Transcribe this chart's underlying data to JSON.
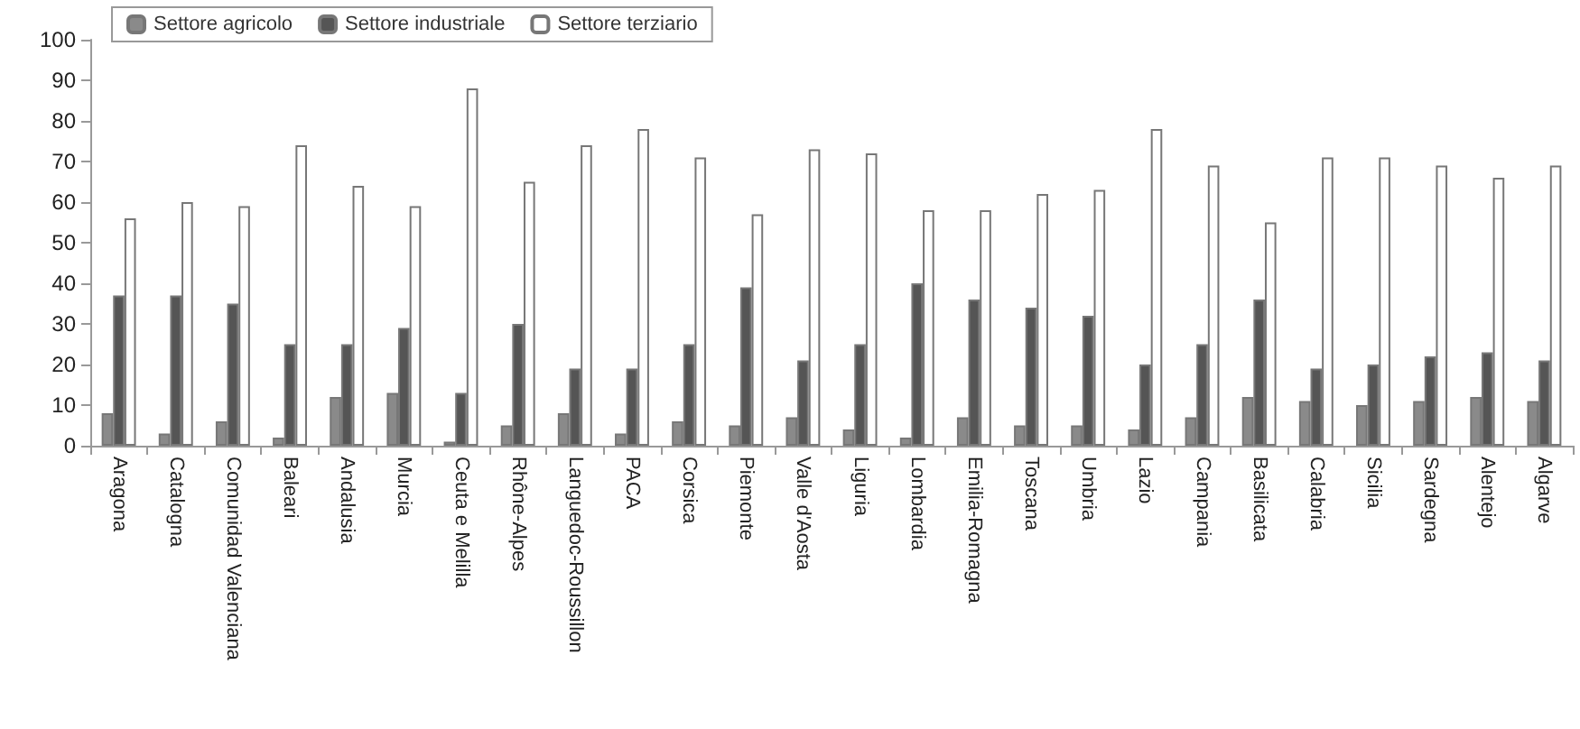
{
  "chart_data": {
    "type": "bar",
    "categories": [
      "Aragona",
      "Catalogna",
      "Comunidad Valenciana",
      "Baleari",
      "Andalusia",
      "Murcia",
      "Ceuta e Melilla",
      "Rhône-Alpes",
      "Languedoc-Roussillon",
      "PACA",
      "Corsica",
      "Piemonte",
      "Valle d'Aosta",
      "Liguria",
      "Lombardia",
      "Emilia-Romagna",
      "Toscana",
      "Umbria",
      "Lazio",
      "Campania",
      "Basilicata",
      "Calabria",
      "Sicilia",
      "Sardegna",
      "Alentejo",
      "Algarve"
    ],
    "series": [
      {
        "name": "Settore agricolo",
        "color": "#8a8a8a",
        "values": [
          8,
          3,
          6,
          2,
          12,
          13,
          1,
          5,
          8,
          3,
          6,
          5,
          7,
          4,
          2,
          7,
          5,
          5,
          4,
          7,
          12,
          11,
          10,
          11,
          12,
          11
        ]
      },
      {
        "name": "Settore industriale",
        "color": "#555555",
        "values": [
          37,
          37,
          35,
          25,
          25,
          29,
          13,
          30,
          19,
          19,
          25,
          39,
          21,
          25,
          40,
          36,
          34,
          32,
          20,
          25,
          36,
          19,
          20,
          22,
          23,
          21
        ]
      },
      {
        "name": "Settore terziario",
        "color": "#ffffff",
        "values": [
          56,
          60,
          59,
          74,
          64,
          59,
          88,
          65,
          74,
          78,
          71,
          57,
          73,
          72,
          58,
          58,
          62,
          63,
          78,
          69,
          55,
          71,
          71,
          69,
          66,
          69
        ]
      }
    ],
    "ylim": [
      0,
      100
    ],
    "yticks": [
      0,
      10,
      20,
      30,
      40,
      50,
      60,
      70,
      80,
      90,
      100
    ],
    "grid": false,
    "legend": "top left"
  }
}
